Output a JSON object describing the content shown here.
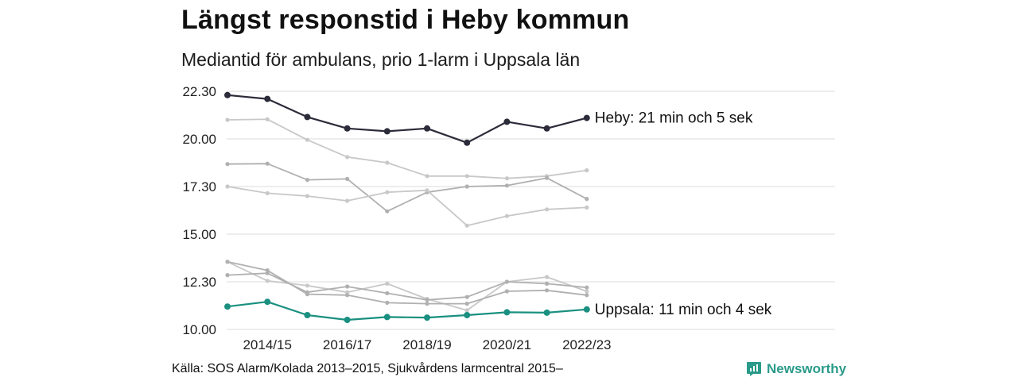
{
  "title": "Längst responstid i Heby kommun",
  "subtitle": "Mediantid för ambulans, prio 1-larm i Uppsala län",
  "source": "Källa: SOS Alarm/Kolada 2013–2015, Sjukvårdens larmcentral 2015–",
  "brand": {
    "name": "Newsworthy",
    "icon": "bar-chart-icon",
    "color": "#2a9a8a"
  },
  "colors": {
    "highlight_dark": "#2b2b3a",
    "highlight_teal": "#1a9080",
    "other_light": "#c8c8c8",
    "other_mid": "#b0b0b0",
    "grid": "#e2e2e2"
  },
  "chart_data": {
    "type": "line",
    "y_tick_labels": [
      "10.00",
      "12.30",
      "15.00",
      "17.30",
      "20.00",
      "22.30"
    ],
    "x_tick_labels": [
      "2014/15",
      "2016/17",
      "2018/19",
      "2020/21",
      "2022/23"
    ],
    "ylim": [
      10,
      22.5
    ],
    "grid": "horizontal",
    "note": "",
    "series": [
      {
        "name": "Heby",
        "role": "highlight-dark",
        "label": "Heby: 21 min och 5 sek",
        "values": [
          22.3,
          22.1,
          21.15,
          20.55,
          20.4,
          20.55,
          19.8,
          20.9,
          20.55,
          21.1
        ]
      },
      {
        "name": "Uppsala",
        "role": "highlight-teal",
        "label": "Uppsala: 11 min och 4 sek",
        "values": [
          11.2,
          11.45,
          10.75,
          10.5,
          10.65,
          10.62,
          10.75,
          10.9,
          10.88,
          11.05
        ]
      },
      {
        "role": "other-light",
        "values": [
          21.0,
          21.03,
          19.95,
          19.05,
          18.75,
          18.05,
          18.05,
          17.93,
          18.05,
          18.35
        ]
      },
      {
        "role": "other-mid",
        "values": [
          18.68,
          18.7,
          17.85,
          17.9,
          16.2,
          17.2,
          17.5,
          17.55,
          17.95,
          16.85
        ]
      },
      {
        "role": "other-light",
        "values": [
          17.5,
          17.15,
          17.0,
          16.75,
          17.2,
          17.3,
          15.45,
          15.95,
          16.3,
          16.4
        ]
      },
      {
        "role": "other-light",
        "values": [
          13.55,
          12.55,
          12.3,
          11.95,
          12.4,
          11.6,
          11.0,
          12.5,
          12.75,
          12.0
        ]
      },
      {
        "role": "other-mid",
        "values": [
          13.55,
          13.1,
          11.85,
          11.8,
          11.4,
          11.35,
          11.35,
          12.0,
          12.05,
          11.8
        ]
      },
      {
        "role": "other-mid",
        "values": [
          12.85,
          12.95,
          11.95,
          12.25,
          11.9,
          11.55,
          11.7,
          12.5,
          12.4,
          12.2
        ]
      }
    ]
  }
}
